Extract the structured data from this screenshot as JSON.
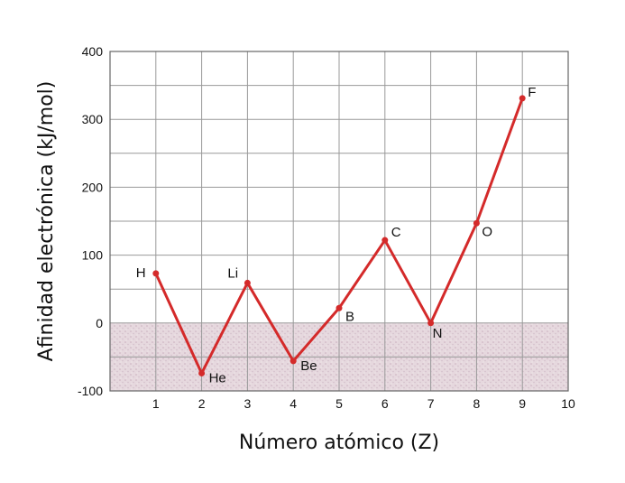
{
  "chart_data": {
    "type": "line",
    "xlabel": "Número atómico (Z)",
    "ylabel": "Afinidad electrónica (kJ/mol)",
    "xlim": [
      0,
      10
    ],
    "ylim": [
      -100,
      400
    ],
    "xticks": [
      1,
      2,
      3,
      4,
      5,
      6,
      7,
      8,
      9,
      10
    ],
    "yticks": [
      -100,
      0,
      100,
      200,
      300,
      400
    ],
    "grid": true,
    "negative_region_shaded": true,
    "colors": {
      "line": "#d42a2a",
      "shade": "#e2d3db",
      "grid": "#999999"
    },
    "points": [
      {
        "label": "H",
        "x": 1,
        "y": 73
      },
      {
        "label": "He",
        "x": 2,
        "y": -74
      },
      {
        "label": "Li",
        "x": 3,
        "y": 59
      },
      {
        "label": "Be",
        "x": 4,
        "y": -56
      },
      {
        "label": "B",
        "x": 5,
        "y": 22
      },
      {
        "label": "C",
        "x": 6,
        "y": 122
      },
      {
        "label": "N",
        "x": 7,
        "y": 0
      },
      {
        "label": "O",
        "x": 8,
        "y": 147
      },
      {
        "label": "F",
        "x": 9,
        "y": 331
      }
    ]
  }
}
